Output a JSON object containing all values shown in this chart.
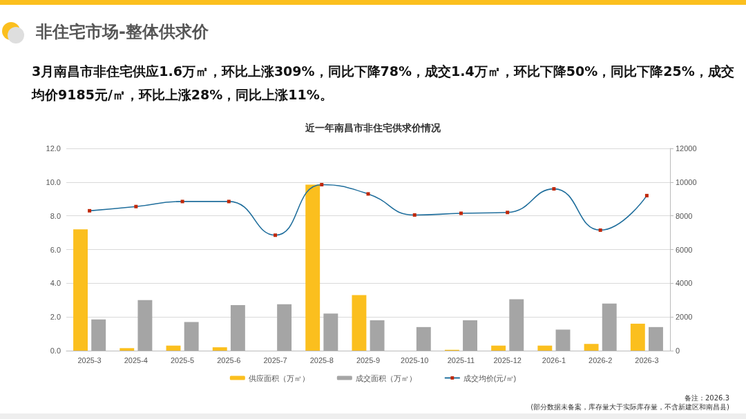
{
  "chart_data": {
    "type": "bar",
    "title": "近一年南昌市非住宅供求价情况",
    "subtitle": "3月南昌市非住宅供应1.6万㎡，环比上涨309%，同比下降78%，成交1.4万㎡，环比下降50%，同比下降25%，成交均价9185元/㎡，环比上涨28%，同比上涨11%。",
    "annotations": [
      "非住宅市场-整体供求价",
      "备注：2026.3",
      "(部分数据未备案，库存量大于实际库存量，不含新建区和南昌县)"
    ],
    "categories": [
      "2025-3",
      "2025-4",
      "2025-5",
      "2025-6",
      "2025-7",
      "2025-8",
      "2025-9",
      "2025-10",
      "2025-11",
      "2025-12",
      "2026-1",
      "2026-2",
      "2026-3"
    ],
    "series": [
      {
        "name": "供应面积（万㎡）",
        "color": "#fbbf1e",
        "values": [
          7.2,
          0.15,
          0.3,
          0.2,
          0.0,
          9.85,
          3.3,
          0.0,
          0.05,
          0.3,
          0.3,
          0.4,
          1.6
        ]
      },
      {
        "name": "成交面积（万㎡）",
        "color": "#a5a5a5",
        "values": [
          1.85,
          3.0,
          1.7,
          2.7,
          2.75,
          2.2,
          1.8,
          1.4,
          1.8,
          3.05,
          1.25,
          2.8,
          1.4
        ]
      },
      {
        "name": "成交均价(元/㎡)",
        "type": "line",
        "axis": "y2",
        "color": "#1f6e9c",
        "marker": "square",
        "values": [
          8300,
          8550,
          8850,
          8850,
          6850,
          9850,
          9300,
          8050,
          8150,
          8200,
          9600,
          7150,
          9200
        ]
      }
    ],
    "ylim": [
      0,
      12
    ],
    "yticks": [
      {
        "value": 0,
        "label": "0.0"
      },
      {
        "value": 2,
        "label": "2.0"
      },
      {
        "value": 4,
        "label": "4.0"
      },
      {
        "value": 6,
        "label": "6.0"
      },
      {
        "value": 8,
        "label": "8.0"
      },
      {
        "value": 10,
        "label": "10.0"
      },
      {
        "value": 12,
        "label": "12.0"
      }
    ],
    "y2lim": [
      0,
      12000
    ],
    "y2ticks": [
      0,
      2000,
      4000,
      6000,
      8000,
      10000,
      12000
    ],
    "grid": "y",
    "legend": "bottom"
  }
}
